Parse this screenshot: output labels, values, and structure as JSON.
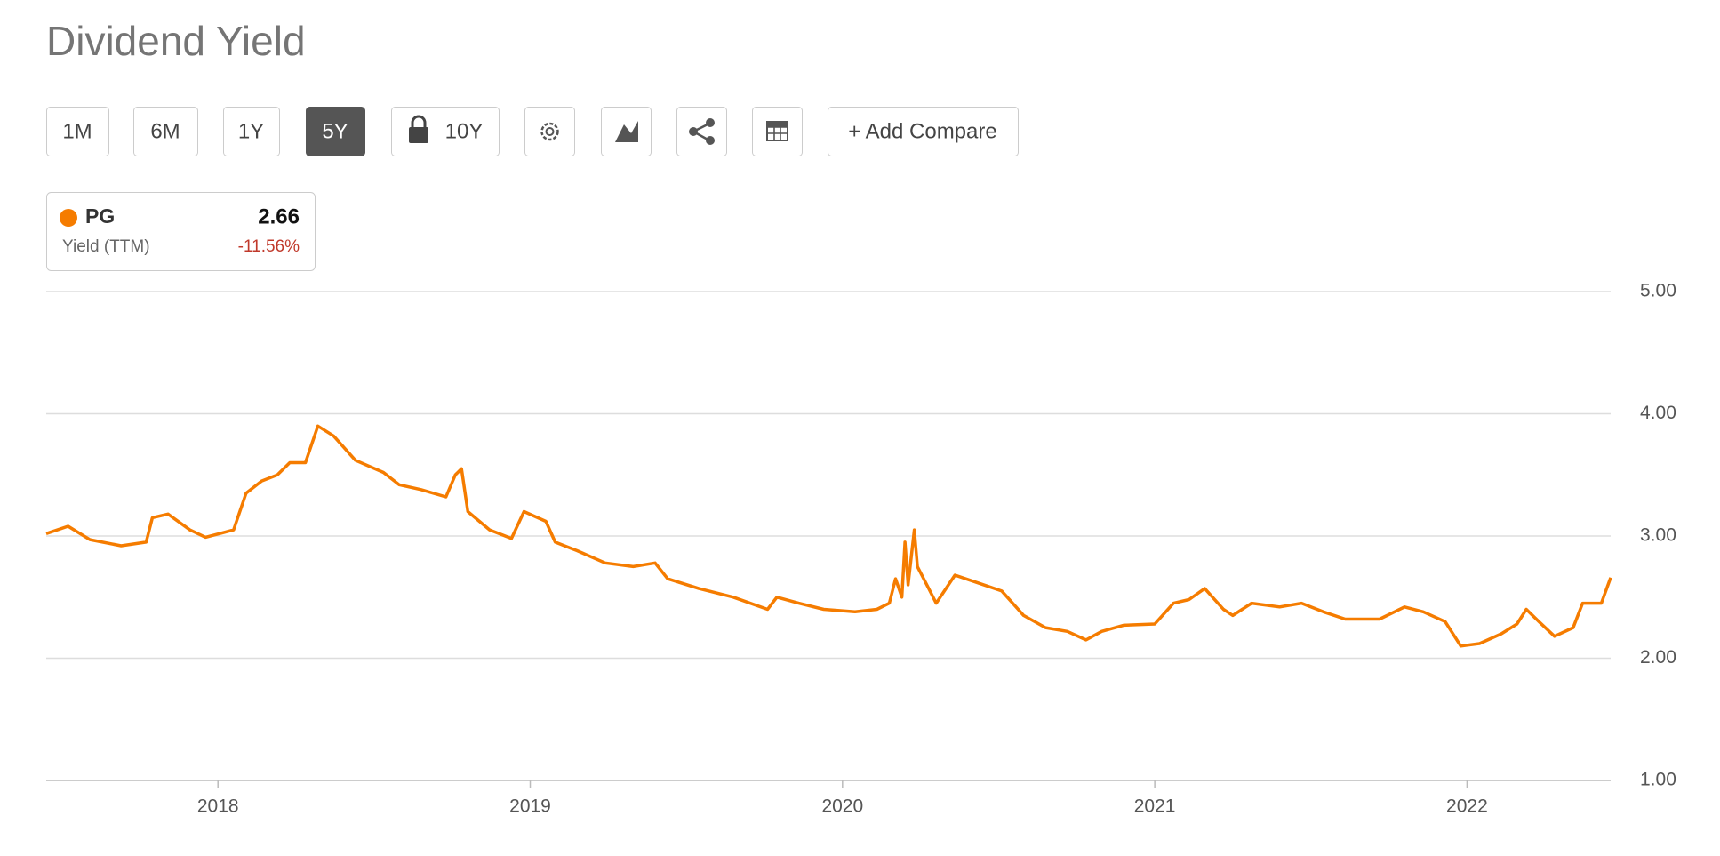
{
  "header": {
    "title": "Dividend Yield"
  },
  "toolbar": {
    "buttons": [
      "1M",
      "6M",
      "1Y",
      "5Y",
      "10Y",
      "+ Add Compare"
    ],
    "active": 3
  },
  "legend_card": {
    "value": 2.66,
    "metric": "Yield (TTM)",
    "change": "-11.56%"
  },
  "chart_data": {
    "type": "line",
    "x": [
      2017.45,
      2017.52,
      2017.59,
      2017.69,
      2017.77,
      2017.79,
      2017.84,
      2017.91,
      2017.96,
      2018.05,
      2018.09,
      2018.14,
      2018.19,
      2018.23,
      2018.28,
      2018.32,
      2018.37,
      2018.44,
      2018.53,
      2018.58,
      2018.65,
      2018.73,
      2018.76,
      2018.78,
      2018.8,
      2018.87,
      2018.94,
      2018.98,
      2019.05,
      2019.08,
      2019.15,
      2019.24,
      2019.33,
      2019.4,
      2019.44,
      2019.54,
      2019.65,
      2019.76,
      2019.79,
      2019.86,
      2019.94,
      2020.04,
      2020.11,
      2020.15,
      2020.17,
      2020.19,
      2020.2,
      2020.21,
      2020.23,
      2020.24,
      2020.27,
      2020.3,
      2020.36,
      2020.43,
      2020.51,
      2020.58,
      2020.65,
      2020.72,
      2020.78,
      2020.83,
      2020.9,
      2021.0,
      2021.06,
      2021.11,
      2021.16,
      2021.22,
      2021.25,
      2021.31,
      2021.4,
      2021.47,
      2021.54,
      2021.61,
      2021.72,
      2021.8,
      2021.86,
      2021.93,
      2021.98,
      2022.04,
      2022.11,
      2022.16,
      2022.19,
      2022.23,
      2022.28,
      2022.34,
      2022.37,
      2022.43,
      2022.46
    ],
    "series": [
      {
        "name": "PG",
        "color": "#f57c00",
        "values": [
          3.02,
          3.08,
          2.97,
          2.92,
          2.95,
          3.15,
          3.18,
          3.05,
          2.99,
          3.05,
          3.35,
          3.45,
          3.5,
          3.6,
          3.6,
          3.9,
          3.82,
          3.62,
          3.52,
          3.42,
          3.38,
          3.32,
          3.5,
          3.55,
          3.2,
          3.05,
          2.98,
          3.2,
          3.12,
          2.95,
          2.88,
          2.78,
          2.75,
          2.78,
          2.65,
          2.57,
          2.5,
          2.4,
          2.5,
          2.45,
          2.4,
          2.38,
          2.4,
          2.45,
          2.65,
          2.5,
          2.95,
          2.6,
          3.05,
          2.75,
          2.6,
          2.45,
          2.68,
          2.62,
          2.55,
          2.35,
          2.25,
          2.22,
          2.15,
          2.22,
          2.27,
          2.28,
          2.45,
          2.48,
          2.57,
          2.4,
          2.35,
          2.45,
          2.42,
          2.45,
          2.38,
          2.32,
          2.32,
          2.42,
          2.38,
          2.3,
          2.1,
          2.12,
          2.2,
          2.28,
          2.4,
          2.3,
          2.18,
          2.25,
          2.45,
          2.45,
          2.66
        ]
      }
    ],
    "xlim": [
      2017.45,
      2022.46
    ],
    "xticks": [
      2018,
      2019,
      2020,
      2021,
      2022
    ],
    "ylim": [
      1,
      5
    ],
    "yticks": [
      {
        "value": 1,
        "label": "1.00"
      },
      {
        "value": 2,
        "label": "2.00"
      },
      {
        "value": 3,
        "label": "3.00"
      },
      {
        "value": 4,
        "label": "4.00"
      },
      {
        "value": 5,
        "label": "5.00"
      }
    ],
    "grid": true
  }
}
